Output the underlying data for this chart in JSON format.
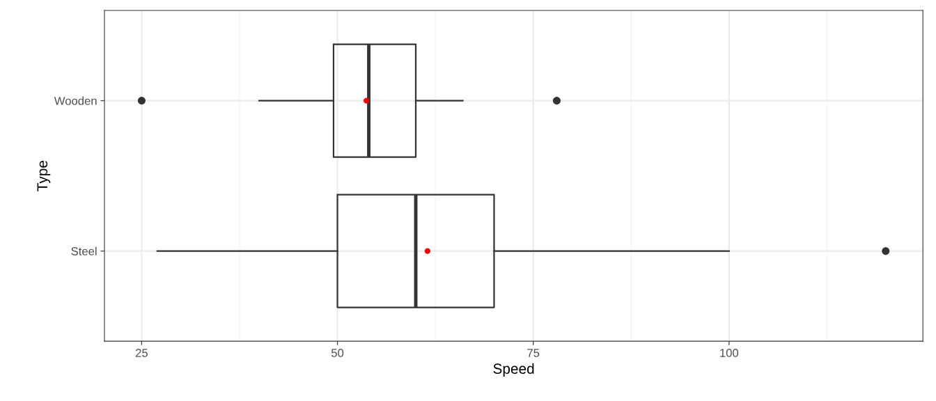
{
  "chart_data": {
    "type": "box",
    "orientation": "horizontal",
    "xlabel": "Speed",
    "ylabel": "Type",
    "categories": [
      "Wooden",
      "Steel"
    ],
    "series": [
      {
        "type": "box",
        "color": "#333333",
        "boxes": [
          {
            "low": 40,
            "q1": 49.5,
            "median": 54,
            "q3": 60,
            "high": 66,
            "outliers": [
              25,
              78
            ]
          },
          {
            "low": 27,
            "q1": 50,
            "median": 60,
            "q3": 70,
            "high": 100,
            "outliers": [
              120
            ]
          }
        ]
      },
      {
        "type": "scatter",
        "color": "#ff0000",
        "x": [
          "Wooden",
          "Steel"
        ],
        "values": [
          53.7,
          61.5
        ]
      }
    ],
    "xlim": [
      20.25,
      124.75
    ],
    "xticks": [
      25,
      50,
      75,
      100
    ],
    "grid": true
  }
}
